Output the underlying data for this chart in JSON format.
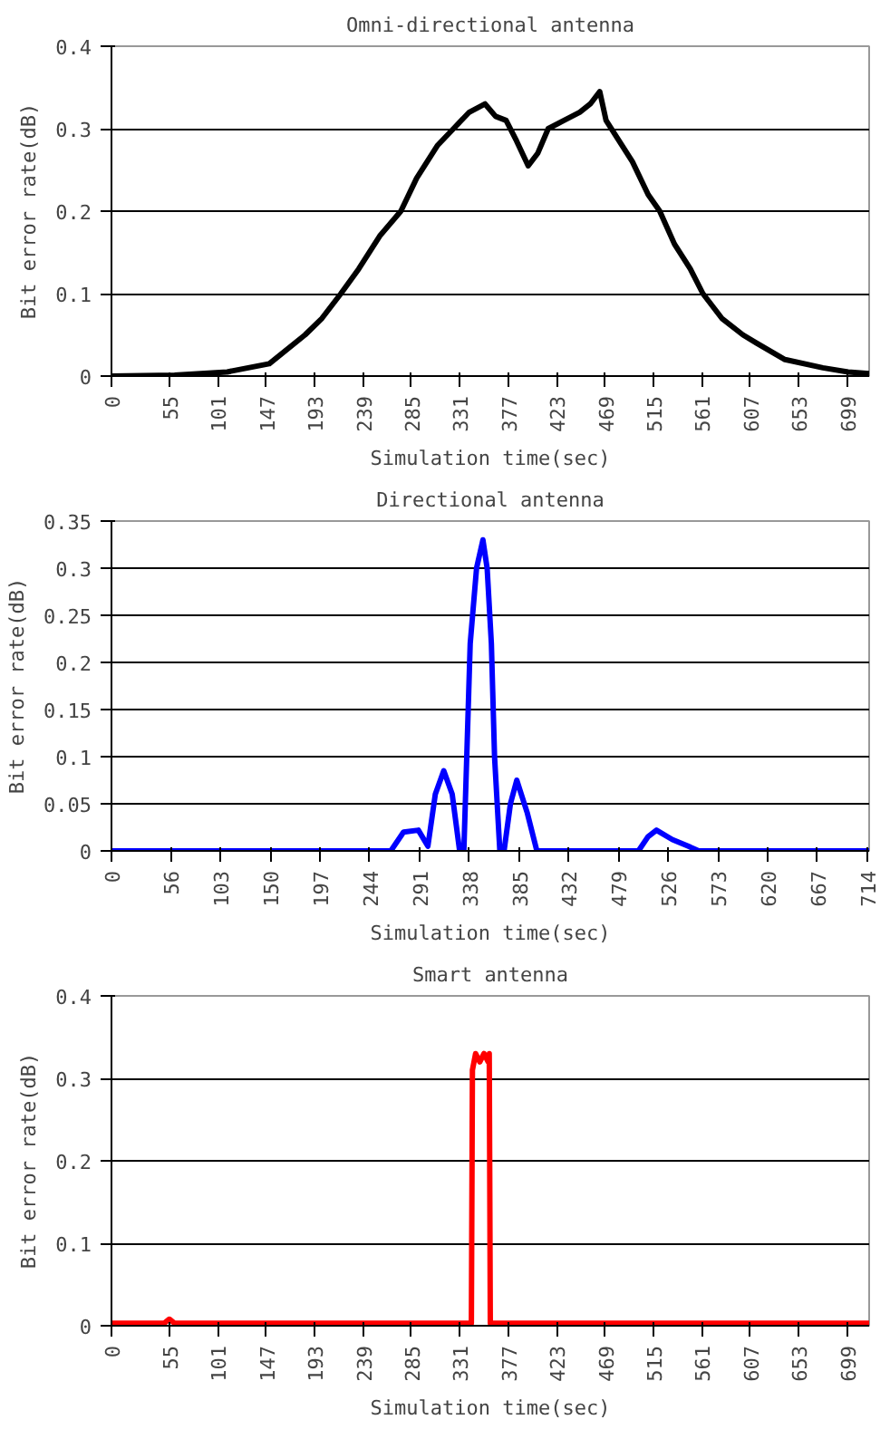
{
  "chart_data": [
    {
      "type": "line",
      "title": "Omni-directional antenna",
      "xlabel": "Simulation time(sec)",
      "ylabel": "Bit error rate(dB)",
      "color": "#000000",
      "grid": "y",
      "x": [
        0,
        60,
        110,
        150,
        184,
        200,
        218,
        235,
        255,
        275,
        290,
        310,
        325,
        340,
        355,
        365,
        375,
        385,
        396,
        405,
        415,
        430,
        445,
        455,
        464,
        470,
        480,
        495,
        510,
        521,
        535,
        550,
        562,
        580,
        600,
        613,
        640,
        676,
        700,
        720
      ],
      "values": [
        0,
        0.001,
        0.005,
        0.015,
        0.05,
        0.07,
        0.1,
        0.13,
        0.17,
        0.2,
        0.24,
        0.28,
        0.3,
        0.32,
        0.33,
        0.315,
        0.31,
        0.285,
        0.255,
        0.27,
        0.3,
        0.31,
        0.32,
        0.33,
        0.345,
        0.31,
        0.29,
        0.26,
        0.22,
        0.2,
        0.16,
        0.13,
        0.1,
        0.07,
        0.05,
        0.04,
        0.02,
        0.01,
        0.005,
        0.003
      ],
      "xlim": [
        0,
        720
      ],
      "ylim": [
        0,
        0.4
      ],
      "xticks": [
        0,
        55,
        101,
        147,
        193,
        239,
        285,
        331,
        377,
        423,
        469,
        515,
        561,
        607,
        653,
        699
      ],
      "yticks": [
        0,
        0.1,
        0.2,
        0.3,
        0.4
      ]
    },
    {
      "type": "line",
      "title": "Directional antenna",
      "xlabel": "Simulation time(sec)",
      "ylabel": "Bit error rate(dB)",
      "color": "#0000ff",
      "grid": "y",
      "x": [
        0,
        264,
        276,
        290,
        299,
        306,
        314,
        322,
        329,
        333,
        339,
        345,
        351,
        355,
        359,
        362,
        367,
        371,
        377,
        383,
        393,
        402,
        498,
        507,
        515,
        530,
        545,
        555,
        716
      ],
      "values": [
        0,
        0,
        0.02,
        0.022,
        0.005,
        0.06,
        0.085,
        0.06,
        0,
        0,
        0.22,
        0.3,
        0.33,
        0.3,
        0.22,
        0.1,
        0,
        0,
        0.05,
        0.075,
        0.04,
        0,
        0,
        0.015,
        0.022,
        0.012,
        0.005,
        0,
        0
      ],
      "xlim": [
        0,
        716
      ],
      "ylim": [
        0,
        0.35
      ],
      "xticks": [
        0,
        56,
        103,
        150,
        197,
        244,
        291,
        338,
        385,
        432,
        479,
        526,
        573,
        620,
        667,
        714
      ],
      "yticks": [
        0,
        0.05,
        0.1,
        0.15,
        0.2,
        0.25,
        0.3,
        0.35
      ]
    },
    {
      "type": "line",
      "title": "Smart antenna",
      "xlabel": "Simulation time(sec)",
      "ylabel": "Bit error rate(dB)",
      "color": "#ff0000",
      "grid": "y",
      "x": [
        0,
        50,
        55,
        60,
        342,
        343,
        346,
        350,
        354,
        358,
        359,
        360,
        720
      ],
      "values": [
        0.003,
        0.003,
        0.008,
        0.003,
        0.003,
        0.31,
        0.33,
        0.32,
        0.33,
        0.32,
        0.33,
        0.003,
        0.003
      ],
      "xlim": [
        0,
        720
      ],
      "ylim": [
        0,
        0.4
      ],
      "xticks": [
        0,
        55,
        101,
        147,
        193,
        239,
        285,
        331,
        377,
        423,
        469,
        515,
        561,
        607,
        653,
        699
      ],
      "yticks": [
        0,
        0.1,
        0.2,
        0.3,
        0.4
      ]
    }
  ]
}
